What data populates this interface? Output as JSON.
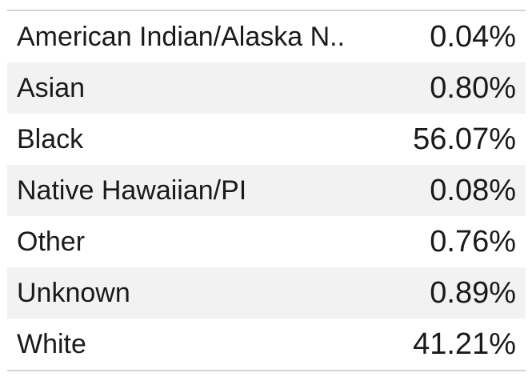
{
  "table": {
    "rows": [
      {
        "label": "American Indian/Alaska N..",
        "value": "0.04%"
      },
      {
        "label": "Asian",
        "value": "0.80%"
      },
      {
        "label": "Black",
        "value": "56.07%"
      },
      {
        "label": "Native Hawaiian/PI",
        "value": "0.08%"
      },
      {
        "label": "Other",
        "value": "0.76%"
      },
      {
        "label": "Unknown",
        "value": "0.89%"
      },
      {
        "label": "White",
        "value": "41.21%"
      }
    ]
  },
  "colors": {
    "row_alt_background": "#f2f2f2",
    "border": "#d4d4d4",
    "text": "#1a1a1a"
  }
}
